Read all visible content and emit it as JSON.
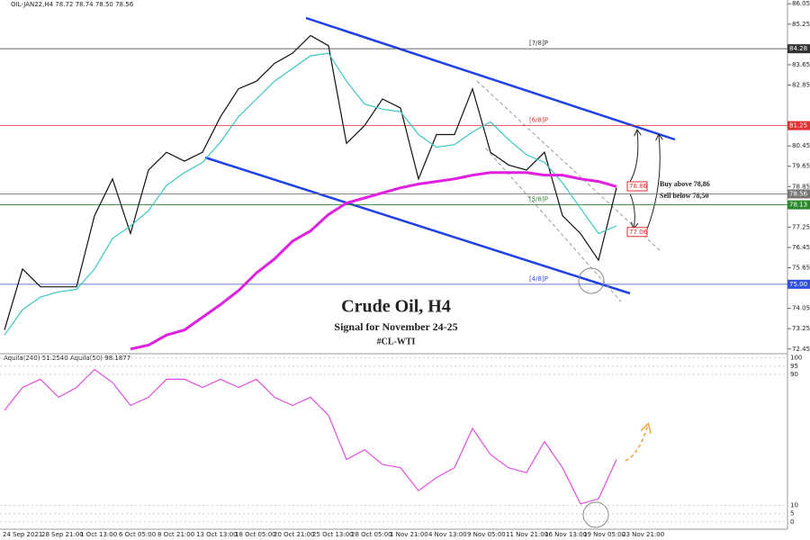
{
  "header": "OIL-JAN22,H4  78.72 78.74 78.50 78.56",
  "chart_data": {
    "type": "line",
    "title": "Crude Oil, H4",
    "subtitle": "Signal for November 24-25",
    "symbol": "#CL-WTI",
    "annotations": [
      "Buy above 78,86",
      "Sell below 78,50"
    ],
    "ylim": [
      72.3,
      86.2
    ],
    "yticks": [
      86.05,
      85.25,
      83.65,
      82.85,
      80.45,
      79.65,
      78.85,
      77.25,
      76.45,
      75.65,
      74.05,
      73.25,
      72.45
    ],
    "series": [
      {
        "name": "Price",
        "color": "#111111",
        "width": 1.2,
        "values": [
          73.2,
          75.6,
          74.9,
          74.9,
          74.9,
          77.7,
          79.15,
          77.0,
          79.5,
          80.2,
          79.85,
          80.2,
          81.6,
          82.7,
          83.0,
          83.7,
          84.1,
          84.8,
          84.4,
          80.55,
          81.25,
          82.3,
          81.95,
          79.15,
          80.9,
          80.9,
          82.7,
          80.2,
          79.7,
          79.5,
          80.2,
          77.7,
          77.0,
          75.95,
          78.8
        ]
      },
      {
        "name": "MA fast",
        "color": "#3cc8c0",
        "width": 1.2,
        "values": [
          73.0,
          74.0,
          74.5,
          74.7,
          74.8,
          75.6,
          76.8,
          77.3,
          77.9,
          78.9,
          79.4,
          79.8,
          80.6,
          81.6,
          82.3,
          83.0,
          83.5,
          84.0,
          84.1,
          83.0,
          82.1,
          81.9,
          81.8,
          80.9,
          80.4,
          80.5,
          81.0,
          81.4,
          80.7,
          80.1,
          79.8,
          79.0,
          78.0,
          77.0,
          77.3
        ]
      },
      {
        "name": "MA slow",
        "color": "#e020e0",
        "width": 3,
        "values": [
          null,
          null,
          null,
          null,
          null,
          null,
          null,
          72.45,
          72.6,
          73.0,
          73.2,
          73.7,
          74.2,
          74.75,
          75.45,
          76.0,
          76.7,
          77.1,
          77.75,
          78.2,
          78.4,
          78.6,
          78.8,
          78.95,
          79.05,
          79.15,
          79.3,
          79.4,
          79.4,
          79.4,
          79.3,
          79.3,
          79.15,
          79.05,
          78.85
        ]
      }
    ],
    "levels": [
      {
        "value": 84.28,
        "tag": "84.28",
        "label": "[7/8]P",
        "color": "#333333"
      },
      {
        "value": 81.25,
        "tag": "81.25",
        "label": "[6/8]P",
        "color": "#e03030"
      },
      {
        "value": 78.56,
        "tag": "78.56",
        "color": "#777777"
      },
      {
        "value": 78.13,
        "tag": "78.13",
        "label": "[5/8]P",
        "color": "#2a8a2a"
      },
      {
        "value": 75,
        "tag": "75.00",
        "label": "[4/8]P",
        "color": "#3050e0"
      }
    ],
    "price_boxes": [
      78.86,
      77.06
    ],
    "time_labels": [
      "24 Sep 2021",
      "28 Sep 21:00",
      "1 Oct 13:00",
      "6 Oct 05:00",
      "8 Oct 21:00",
      "13 Oct 13:00",
      "18 Oct 05:00",
      "20 Oct 21:00",
      "25 Oct 13:00",
      "28 Oct 05:00",
      "1 Nov 21:00",
      "4 Nov 13:00",
      "9 Nov 05:00",
      "11 Nov 21:00",
      "16 Nov 13:00",
      "19 Nov 05:00",
      "23 Nov 21:00"
    ],
    "indicator": {
      "legend": "Aquila(240) 51.2540 Aquila(50) 98.1877",
      "ylim": [
        -4.5,
        101.5
      ],
      "yticks": [
        100,
        95,
        90,
        10,
        5,
        0
      ],
      "color": "#e050e0",
      "values": [
        68,
        82,
        87,
        76,
        82,
        93,
        85,
        71,
        76,
        87,
        87,
        82,
        87,
        82,
        87,
        76,
        71,
        76,
        65,
        38,
        44,
        35,
        33,
        19,
        27,
        33,
        57,
        41,
        33,
        30,
        49,
        33,
        11,
        14,
        38
      ]
    }
  }
}
